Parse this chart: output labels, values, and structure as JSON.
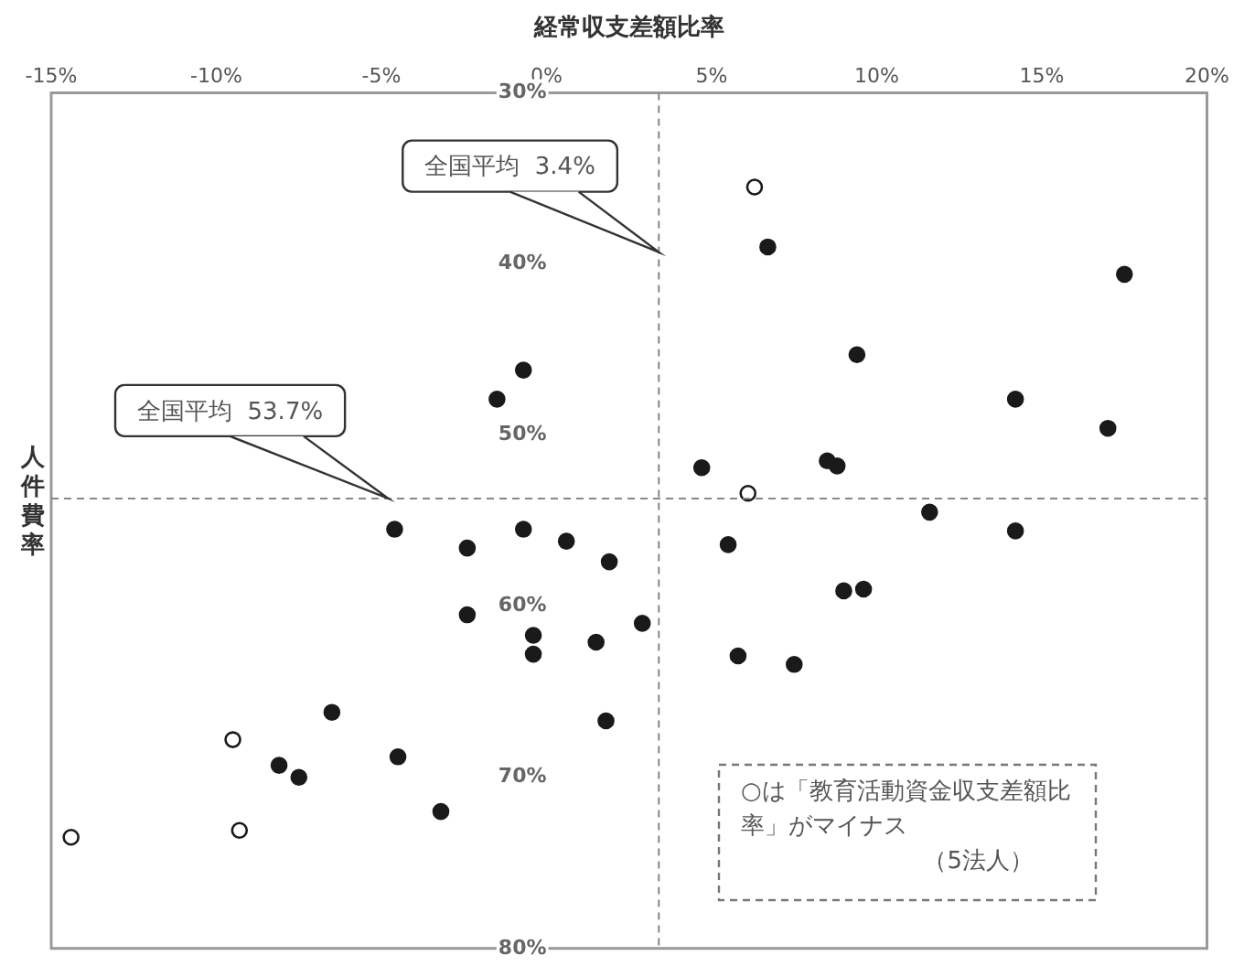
{
  "chart_data": {
    "type": "scatter",
    "xlabel": "経常収支差額比率",
    "ylabel": "人件費率",
    "xlim": [
      -15,
      20
    ],
    "xticks": [
      {
        "value": -15,
        "label": "-15%"
      },
      {
        "value": -10,
        "label": "-10%"
      },
      {
        "value": -5,
        "label": "-5%"
      },
      {
        "value": 0,
        "label": "0%"
      },
      {
        "value": 5,
        "label": "5%"
      },
      {
        "value": 10,
        "label": "10%"
      },
      {
        "value": 15,
        "label": "15%"
      },
      {
        "value": 20,
        "label": "20%"
      }
    ],
    "ylim": [
      80,
      30
    ],
    "yticks": [
      {
        "value": 30,
        "label": "30%"
      },
      {
        "value": 40,
        "label": "40%"
      },
      {
        "value": 50,
        "label": "50%"
      },
      {
        "value": 60,
        "label": "60%"
      },
      {
        "value": 70,
        "label": "70%"
      },
      {
        "value": 80,
        "label": "80%"
      }
    ],
    "grid": false,
    "legend": false,
    "marker": "circle",
    "series": [
      {
        "color": "#1a1a1a",
        "x": [
          -0.7,
          -1.5,
          -4.6,
          -2.4,
          -0.7,
          0.6,
          1.9,
          6.7,
          17.5,
          9.4,
          14.2,
          17.0,
          4.7,
          8.5,
          8.8,
          11.6,
          14.2,
          5.5,
          -2.4,
          -0.4,
          -0.4,
          1.5,
          1.8,
          -6.5,
          -8.1,
          -7.5,
          -4.5,
          -3.2,
          2.9,
          9.0,
          9.6,
          5.8,
          7.5
        ],
        "values": [
          46.2,
          47.9,
          55.5,
          56.6,
          55.5,
          56.2,
          57.4,
          39.0,
          40.6,
          45.3,
          47.9,
          49.6,
          51.9,
          51.5,
          51.8,
          54.5,
          55.6,
          56.4,
          60.5,
          61.7,
          62.8,
          62.1,
          66.7,
          66.2,
          69.3,
          70.0,
          68.8,
          72.0,
          61.0,
          59.1,
          59.0,
          62.9,
          63.4
        ]
      },
      {
        "color": "#ffffff",
        "x": [
          6.3,
          6.1,
          -9.5,
          -14.4,
          -9.3
        ],
        "values": [
          35.5,
          53.4,
          67.8,
          73.5,
          73.1
        ]
      }
    ],
    "ref_lines": [
      {
        "axis": "x",
        "value": 3.4,
        "label": "全国平均  3.4%",
        "line_style": "dashed"
      },
      {
        "axis": "y",
        "value": 53.7,
        "label": "全国平均  53.7%",
        "line_style": "dashed"
      }
    ],
    "annotations": [
      "○は「教育活動資金収支差額比率」がマイナス",
      "（5法人）"
    ]
  }
}
